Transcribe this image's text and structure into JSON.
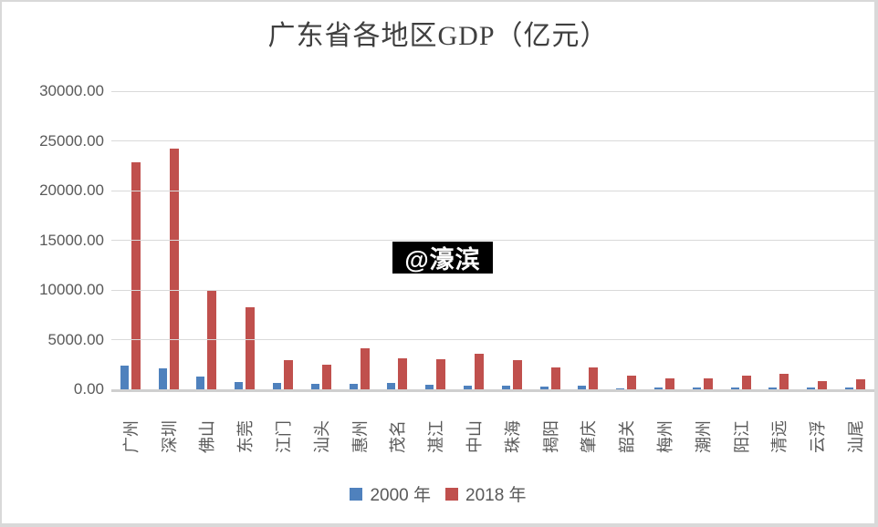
{
  "frame": {
    "background": "#ffffff",
    "border_color": "#d9d9d9"
  },
  "chart_data": {
    "type": "bar",
    "title": "广东省各地区GDP（亿元）",
    "categories": [
      "广州",
      "深圳",
      "佛山",
      "东莞",
      "江门",
      "汕头",
      "惠州",
      "茂名",
      "湛江",
      "中山",
      "珠海",
      "揭阳",
      "肇庆",
      "韶关",
      "梅州",
      "潮州",
      "阳江",
      "清远",
      "云浮",
      "汕尾"
    ],
    "series": [
      {
        "name": "2000 年",
        "color": "#4F81BD",
        "values": [
          2400,
          2160,
          1320,
          720,
          640,
          560,
          520,
          610,
          430,
          400,
          410,
          320,
          340,
          120,
          210,
          200,
          190,
          210,
          190,
          190
        ]
      },
      {
        "name": "2018 年",
        "color": "#C0504D",
        "values": [
          22850,
          24200,
          9950,
          8300,
          2900,
          2500,
          4100,
          3100,
          3050,
          3600,
          2950,
          2180,
          2250,
          1340,
          1110,
          1100,
          1400,
          1570,
          860,
          980
        ]
      }
    ],
    "ylim": [
      0,
      30000
    ],
    "ytick_step": 5000,
    "ytick_labels": [
      "0.00",
      "5000.00",
      "10000.00",
      "15000.00",
      "20000.00",
      "25000.00",
      "30000.00"
    ],
    "grid": "horizontal",
    "legend_position": "bottom",
    "gridline_color": "#d9d9d9",
    "axis_line_color": "#cfcfcf",
    "tick_text_color": "#595959",
    "title_color": "#3f3f3f"
  },
  "watermark": {
    "text": "@濠滨",
    "bg": "#000000",
    "fg": "#ffffff"
  }
}
